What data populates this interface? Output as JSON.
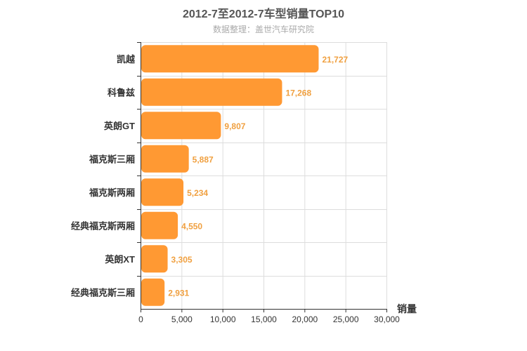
{
  "chart_data": {
    "type": "bar",
    "orientation": "horizontal",
    "title": "2012-7至2012-7车型销量TOP10",
    "subtitle": "数据整理：盖世汽车研究院",
    "categories": [
      "凯越",
      "科鲁兹",
      "英朗GT",
      "福克斯三厢",
      "福克斯两厢",
      "经典福克斯两厢",
      "英朗XT",
      "经典福克斯三厢"
    ],
    "values": [
      21727,
      17268,
      9807,
      5887,
      5234,
      4550,
      3305,
      2931
    ],
    "data_labels": [
      "21,727",
      "17,268",
      "9,807",
      "5,887",
      "5,234",
      "4,550",
      "3,305",
      "2,931"
    ],
    "xlabel": "销量",
    "ylabel": "",
    "xlim": [
      0,
      30000
    ],
    "ticks": [
      0,
      5000,
      10000,
      15000,
      20000,
      25000,
      30000
    ],
    "tick_labels": [
      "0",
      "5,000",
      "10,000",
      "15,000",
      "20,000",
      "25,000",
      "30,000"
    ],
    "grid": true,
    "bar_color": "#ff9933",
    "label_color": "#f0a040"
  }
}
